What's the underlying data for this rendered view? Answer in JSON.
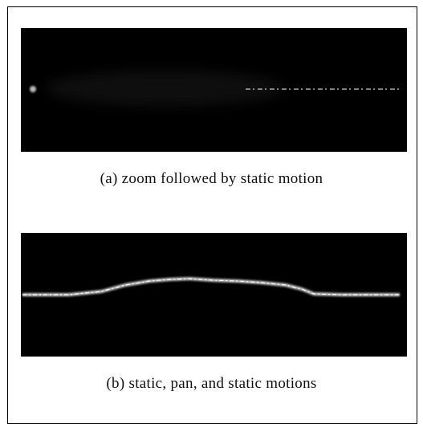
{
  "figure": {
    "panels": [
      {
        "caption": "(a) zoom followed by static motion"
      },
      {
        "caption": "(b) static, pan, and static motions"
      }
    ]
  }
}
